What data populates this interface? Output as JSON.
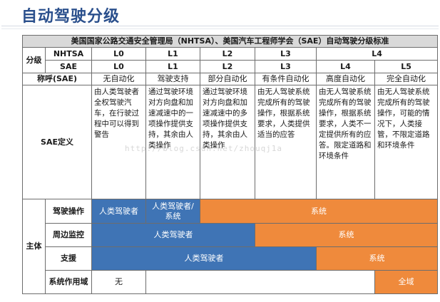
{
  "page": {
    "title": "自动驾驶分级"
  },
  "table": {
    "caption": "美国国家公路交通安全管理局（NHTSA）、美国汽车工程师学会（SAE）自动驾驶分级标准",
    "grading_label": "分级",
    "nhtsa_label": "NHTSA",
    "sae_label": "SAE",
    "nhtsa_levels": [
      "L0",
      "L1",
      "L2",
      "L3",
      "L4"
    ],
    "sae_levels": [
      "L0",
      "L1",
      "L2",
      "L3",
      "L4",
      "L5"
    ],
    "name_label": "称呼(SAE)",
    "names": [
      "无自动化",
      "驾驶支持",
      "部分自动化",
      "有条件自动化",
      "高度自动化",
      "完全自动化"
    ],
    "definition_label": "SAE定义",
    "definitions": [
      "由人类驾驶者全权驾驶汽车，在行驶过程中可以得到警告",
      "通过驾驶环境对方向盘和加速减速中的一项操作提供支持，其余由人类操作",
      "通过驾驶环境对方向盘和加速减速中的多项操作提供支持，其余由人类操作",
      "由无人驾驶系统完成所有的驾驶操作，根据系统要求，人类提供适当的应答",
      "由无人驾驶系统完成所有的驾驶操作，根据系统要求，人类不一定提供所有的应答。限定道路和环境条件",
      "由无人驾驶系统完成所有的驾驶操作，可能的情况下，人类接管，不限定道路和环境条件"
    ],
    "subject_label": "主体",
    "rows": {
      "driving": {
        "label": "驾驶操作",
        "human": "人类驾驶者",
        "mixed": "人类驾驶者/系统",
        "system": "系统"
      },
      "monitoring": {
        "label": "周边监控",
        "human": "人类驾驶者",
        "system": "系统"
      },
      "support": {
        "label": "支援",
        "human": "人类驾驶者",
        "system": "系统"
      },
      "scope": {
        "label": "系统作用域",
        "none": "无",
        "all": "全域"
      }
    },
    "watermark": "http://blog.csdn.net/zhouqj1a"
  },
  "colors": {
    "title": "#2a4f8c",
    "human": "#3f74b5",
    "system": "#ef8a3c",
    "header": "#d9d9d9"
  }
}
